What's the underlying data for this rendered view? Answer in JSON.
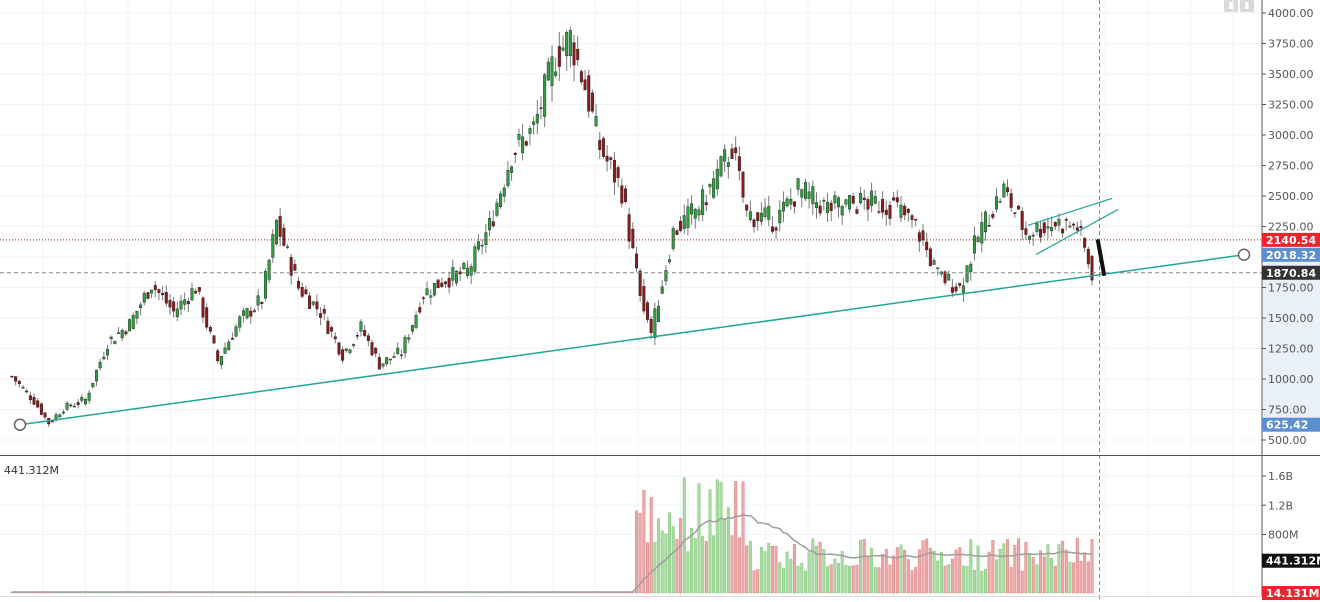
{
  "chart_data": [
    {
      "type": "candlestick",
      "pane": "price",
      "y_ticks": [
        "4000.00",
        "3750.00",
        "3500.00",
        "3250.00",
        "3000.00",
        "2750.00",
        "2500.00",
        "2250.00",
        "2000.00",
        "1750.00",
        "1500.00",
        "1250.00",
        "1000.00",
        "750.00",
        "500.00"
      ],
      "ylim": [
        500,
        4000
      ],
      "price_labels": [
        {
          "text": "2140.54",
          "value": 2140.54,
          "color": "#e8262d"
        },
        {
          "text": "2018.32",
          "value": 2018.32,
          "color": "#5b8fd1"
        },
        {
          "text": "1870.84",
          "value": 1870.84,
          "color": "#333333"
        },
        {
          "text": "625.42",
          "value": 625.42,
          "color": "#5b8fd1"
        }
      ],
      "horizontal_lines": [
        {
          "value": 2140.54,
          "style": "dotted",
          "color": "#b22222"
        },
        {
          "value": 1870.84,
          "style": "dashed",
          "color": "#888888"
        }
      ],
      "trendline": {
        "from_value": 625.42,
        "to_value": 2018.32,
        "color": "#22a59a"
      },
      "ohlc_keypoints": [
        {
          "i": 0,
          "c": 1020
        },
        {
          "i": 6,
          "c": 820
        },
        {
          "i": 10,
          "c": 640
        },
        {
          "i": 14,
          "c": 760
        },
        {
          "i": 20,
          "c": 830
        },
        {
          "i": 26,
          "c": 1300
        },
        {
          "i": 32,
          "c": 1450
        },
        {
          "i": 38,
          "c": 1780
        },
        {
          "i": 44,
          "c": 1550
        },
        {
          "i": 50,
          "c": 1750
        },
        {
          "i": 56,
          "c": 1150
        },
        {
          "i": 62,
          "c": 1480
        },
        {
          "i": 68,
          "c": 1650
        },
        {
          "i": 72,
          "c": 2280
        },
        {
          "i": 78,
          "c": 1750
        },
        {
          "i": 84,
          "c": 1550
        },
        {
          "i": 90,
          "c": 1200
        },
        {
          "i": 95,
          "c": 1420
        },
        {
          "i": 100,
          "c": 1120
        },
        {
          "i": 106,
          "c": 1220
        },
        {
          "i": 112,
          "c": 1700
        },
        {
          "i": 118,
          "c": 1820
        },
        {
          "i": 124,
          "c": 1880
        },
        {
          "i": 130,
          "c": 2250
        },
        {
          "i": 136,
          "c": 2850
        },
        {
          "i": 142,
          "c": 3050
        },
        {
          "i": 148,
          "c": 3650
        },
        {
          "i": 152,
          "c": 3800
        },
        {
          "i": 156,
          "c": 3400
        },
        {
          "i": 160,
          "c": 2900
        },
        {
          "i": 166,
          "c": 2550
        },
        {
          "i": 170,
          "c": 1850
        },
        {
          "i": 174,
          "c": 1380
        },
        {
          "i": 180,
          "c": 2200
        },
        {
          "i": 188,
          "c": 2450
        },
        {
          "i": 196,
          "c": 2900
        },
        {
          "i": 200,
          "c": 2350
        },
        {
          "i": 208,
          "c": 2300
        },
        {
          "i": 214,
          "c": 2550
        },
        {
          "i": 222,
          "c": 2400
        },
        {
          "i": 232,
          "c": 2450
        },
        {
          "i": 240,
          "c": 2420
        },
        {
          "i": 246,
          "c": 2250
        },
        {
          "i": 252,
          "c": 1850
        },
        {
          "i": 258,
          "c": 1750
        },
        {
          "i": 264,
          "c": 2250
        },
        {
          "i": 270,
          "c": 2550
        },
        {
          "i": 276,
          "c": 2200
        },
        {
          "i": 284,
          "c": 2280
        },
        {
          "i": 290,
          "c": 2250
        },
        {
          "i": 294,
          "c": 1870
        }
      ],
      "channel": {
        "color": "#22a59a"
      },
      "projection": {
        "from_value": 2130,
        "to_value": 1860,
        "color": "#111111"
      }
    },
    {
      "type": "bar",
      "pane": "volume",
      "label": "441.312M",
      "y_ticks": [
        "1.6B",
        "1.2B",
        "800M"
      ],
      "ylim": [
        0,
        1650000000
      ],
      "value_labels": [
        {
          "text": "441.312M",
          "value": 441312000,
          "color": "#111111"
        },
        {
          "text": "14.131M",
          "value": 14131000,
          "color": "#e8262d"
        }
      ],
      "ma_line": {
        "color": "#9e9e9e"
      },
      "colors": {
        "up": "#a7dca0",
        "down": "#efa6a6"
      }
    }
  ],
  "icons": {
    "corner_left": "lock-icon",
    "corner_right": "eye-icon"
  }
}
